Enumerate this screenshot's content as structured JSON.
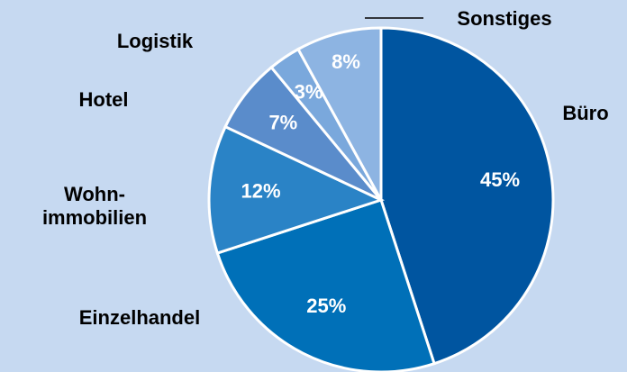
{
  "chart_data": {
    "type": "pie",
    "categories": [
      "Büro",
      "Einzelhandel",
      "Wohn-\nimmobilien",
      "Hotel",
      "Logistik",
      "Sonstiges"
    ],
    "values": [
      45,
      25,
      12,
      7,
      3,
      8
    ],
    "value_labels": [
      "45%",
      "25%",
      "12%",
      "7%",
      "3%",
      "8%"
    ],
    "colors": [
      "#0055a0",
      "#0070b8",
      "#2a83c6",
      "#5a8ccb",
      "#7aa8dc",
      "#8db4e2"
    ]
  }
}
